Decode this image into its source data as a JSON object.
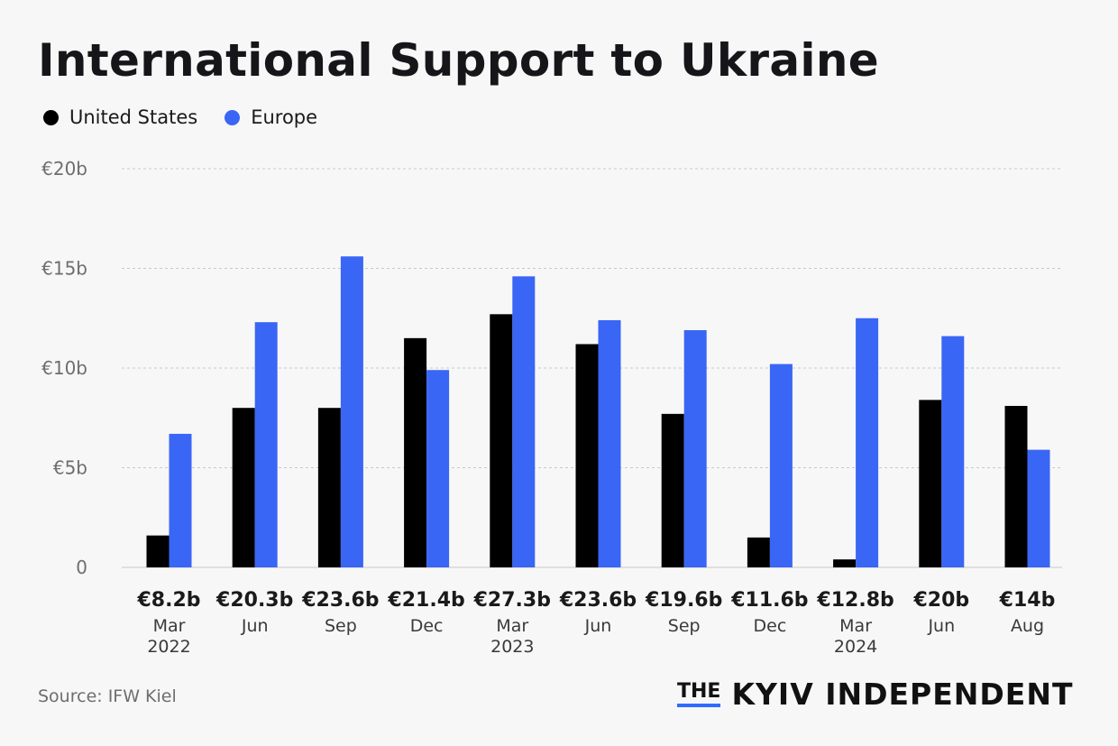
{
  "colors": {
    "us": "#000000",
    "europe": "#3a66f5",
    "grid": "#c9c9c9",
    "axis_text": "#6e6e6e"
  },
  "legend": {
    "us_label": "United States",
    "europe_label": "Europe"
  },
  "source": "Source: IFW Kiel",
  "brand": {
    "the": "THE",
    "name": "KYIV INDEPENDENT"
  },
  "chart_data": {
    "type": "bar",
    "title": "International Support to Ukraine",
    "ylim": [
      0,
      20
    ],
    "yticks": [
      {
        "value": 0,
        "label": "0"
      },
      {
        "value": 5,
        "label": "€5b"
      },
      {
        "value": 10,
        "label": "€10b"
      },
      {
        "value": 15,
        "label": "€15b"
      },
      {
        "value": 20,
        "label": "€20b"
      }
    ],
    "grid": true,
    "legend_position": "top-left",
    "categories": [
      {
        "total": "€8.2b",
        "month": "Mar",
        "year": "2022"
      },
      {
        "total": "€20.3b",
        "month": "Jun",
        "year": ""
      },
      {
        "total": "€23.6b",
        "month": "Sep",
        "year": ""
      },
      {
        "total": "€21.4b",
        "month": "Dec",
        "year": ""
      },
      {
        "total": "€27.3b",
        "month": "Mar",
        "year": "2023"
      },
      {
        "total": "€23.6b",
        "month": "Jun",
        "year": ""
      },
      {
        "total": "€19.6b",
        "month": "Sep",
        "year": ""
      },
      {
        "total": "€11.6b",
        "month": "Dec",
        "year": ""
      },
      {
        "total": "€12.8b",
        "month": "Mar",
        "year": "2024"
      },
      {
        "total": "€20b",
        "month": "Jun",
        "year": ""
      },
      {
        "total": "€14b",
        "month": "Aug",
        "year": ""
      }
    ],
    "series": [
      {
        "name": "United States",
        "values": [
          1.6,
          8.0,
          8.0,
          11.5,
          12.7,
          11.2,
          7.7,
          1.5,
          0.4,
          8.4,
          8.1
        ]
      },
      {
        "name": "Europe",
        "values": [
          6.7,
          12.3,
          15.6,
          9.9,
          14.6,
          12.4,
          11.9,
          10.2,
          12.5,
          11.6,
          5.9
        ]
      }
    ]
  }
}
